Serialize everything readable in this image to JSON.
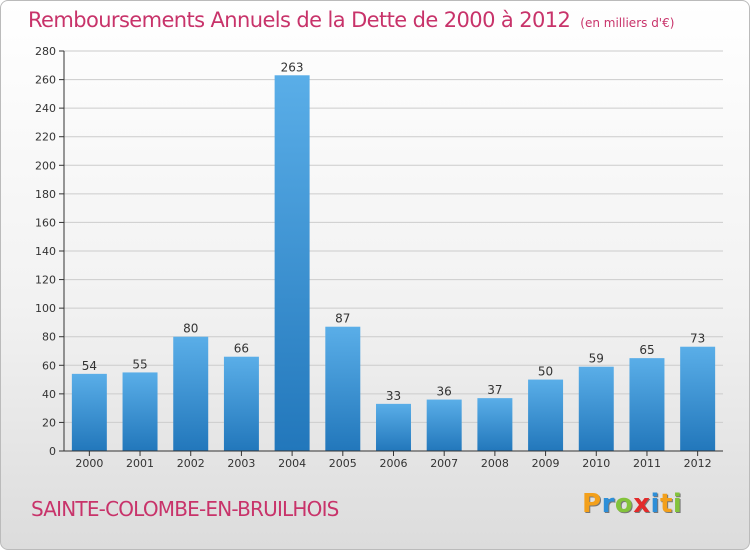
{
  "chart_data": {
    "type": "bar",
    "title": "Remboursements Annuels de la Dette de 2000 à 2012",
    "subtitle": "(en milliers d'€)",
    "categories": [
      "2000",
      "2001",
      "2002",
      "2003",
      "2004",
      "2005",
      "2006",
      "2007",
      "2008",
      "2009",
      "2010",
      "2011",
      "2012"
    ],
    "values": [
      54,
      55,
      80,
      66,
      263,
      87,
      33,
      36,
      37,
      50,
      59,
      65,
      73
    ],
    "ylim": [
      0,
      280
    ],
    "yticks": [
      0,
      20,
      40,
      60,
      80,
      100,
      120,
      140,
      160,
      180,
      200,
      220,
      240,
      260,
      280
    ],
    "grid": true,
    "xlabel": "",
    "ylabel": "",
    "bar_color_top": "#5aaee8",
    "bar_color_bottom": "#2277bb"
  },
  "footer": {
    "town": "SAINTE-COLOMBE-EN-BRUILHOIS",
    "logo_letters": [
      {
        "char": "P",
        "color": "#f3a01b"
      },
      {
        "char": "r",
        "color": "#2e8fd8"
      },
      {
        "char": "o",
        "color": "#83c33b"
      },
      {
        "char": "x",
        "color": "#e32b2b"
      },
      {
        "char": "i",
        "color": "#2e8fd8"
      },
      {
        "char": "t",
        "color": "#f3a01b"
      },
      {
        "char": "i",
        "color": "#83c33b"
      }
    ]
  },
  "colors": {
    "accent": "#c8336a",
    "grid": "#cccccc",
    "axis": "#333333"
  }
}
